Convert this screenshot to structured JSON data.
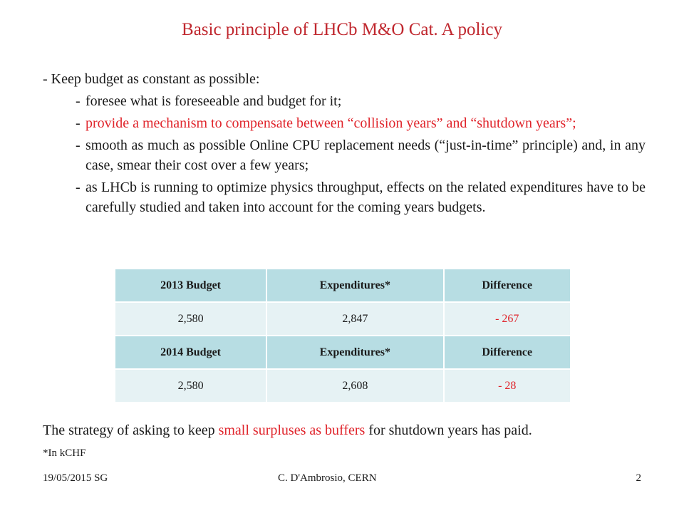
{
  "title": "Basic principle of LHCb M&O Cat. A policy",
  "bullets": {
    "main": "- Keep budget as constant as possible:",
    "sub": [
      {
        "dash": "-",
        "text": " foresee what is foreseeable and budget for it;"
      },
      {
        "dash": "-",
        "text": " provide a mechanism to compensate between “collision years” and “shutdown years”;"
      },
      {
        "dash": "-",
        "text": " smooth as much as possible Online CPU replacement needs (“just-in-time” principle) and, in any case, smear their cost over a few years;"
      },
      {
        "dash": "-",
        "text": " as LHCb is running to optimize physics throughput, effects on the related expenditures have to be carefully studied and taken into account for the coming years budgets."
      }
    ]
  },
  "table": {
    "rows": [
      {
        "c1": "2013 Budget",
        "c2": "Expenditures*",
        "c3": "Difference"
      },
      {
        "c1": "2,580",
        "c2": "2,847",
        "c3": "- 267"
      },
      {
        "c1": "2014 Budget",
        "c2": "Expenditures*",
        "c3": "Difference"
      },
      {
        "c1": "2,580",
        "c2": "2,608",
        "c3": "- 28"
      }
    ]
  },
  "strategy": {
    "before": "The strategy of asking to keep ",
    "highlight": "small surpluses as buffers",
    "after": " for shutdown years has paid."
  },
  "footnote": "*In kCHF",
  "footer": {
    "left": "19/05/2015 SG",
    "center": "C. D'Ambrosio, CERN",
    "right": "2"
  },
  "colors": {
    "title": "#c0282f",
    "highlight": "#e0242b",
    "header_fill": "#b7dde3",
    "row_fill": "#e6f2f4"
  }
}
